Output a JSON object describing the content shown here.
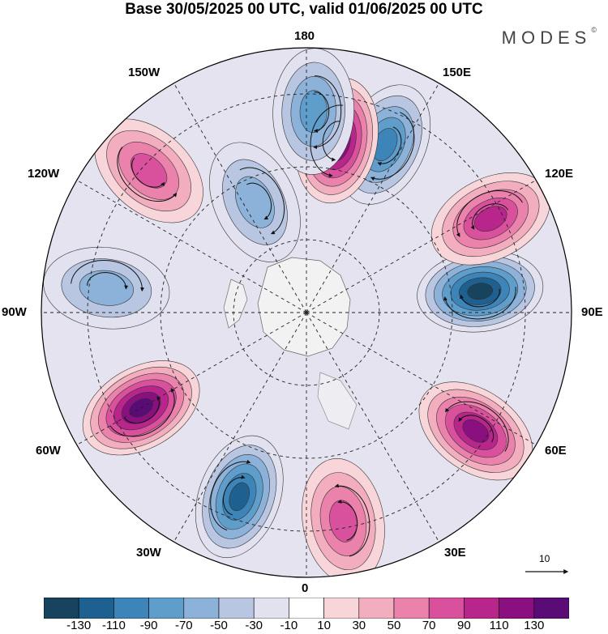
{
  "title": "Base 30/05/2025 00 UTC, valid 01/06/2025 00 UTC",
  "brand": "MODES",
  "brand_mark": "©",
  "longitude_labels": {
    "top": "180",
    "top_left": "150W",
    "top_right": "150E",
    "upper_left": "120W",
    "upper_right": "120E",
    "left": "90W",
    "right": "90E",
    "lower_left": "60W",
    "lower_right": "60E",
    "bottom_left": "30W",
    "bottom_right": "30E",
    "bottom": "0"
  },
  "vector_scale": {
    "label": "10"
  },
  "colorbar": {
    "colors": [
      "#17435f",
      "#1e608f",
      "#3d85b8",
      "#5f9dcb",
      "#8cb2d9",
      "#b8c6e2",
      "#e2e1ef",
      "#ffffff",
      "#f7d5d8",
      "#f2aebf",
      "#eb82ac",
      "#d9509c",
      "#b8258b",
      "#8a107f",
      "#5a0c76"
    ],
    "ticks": [
      "-130",
      "-110",
      "-90",
      "-70",
      "-50",
      "-30",
      "-10",
      "10",
      "30",
      "50",
      "70",
      "90",
      "110",
      "130"
    ]
  },
  "anomaly_centers": [
    {
      "sign": "negative",
      "level": 4,
      "bearing_deg": 155,
      "dist": 0.7
    },
    {
      "sign": "positive",
      "level": 6,
      "bearing_deg": 170,
      "dist": 0.66
    },
    {
      "sign": "negative",
      "level": 3,
      "bearing_deg": 178,
      "dist": 0.76
    },
    {
      "sign": "positive",
      "level": 3,
      "bearing_deg": 228,
      "dist": 0.8
    },
    {
      "sign": "negative",
      "level": 2,
      "bearing_deg": 205,
      "dist": 0.46
    },
    {
      "sign": "negative",
      "level": 2,
      "bearing_deg": 263,
      "dist": 0.76
    },
    {
      "sign": "positive",
      "level": 6,
      "bearing_deg": 300,
      "dist": 0.72
    },
    {
      "sign": "negative",
      "level": 5,
      "bearing_deg": 340,
      "dist": 0.74
    },
    {
      "sign": "positive",
      "level": 3,
      "bearing_deg": 10,
      "dist": 0.8
    },
    {
      "sign": "positive",
      "level": 5,
      "bearing_deg": 55,
      "dist": 0.78
    },
    {
      "sign": "negative",
      "level": 6,
      "bearing_deg": 97,
      "dist": 0.66
    },
    {
      "sign": "positive",
      "level": 4,
      "bearing_deg": 117,
      "dist": 0.78
    }
  ]
}
